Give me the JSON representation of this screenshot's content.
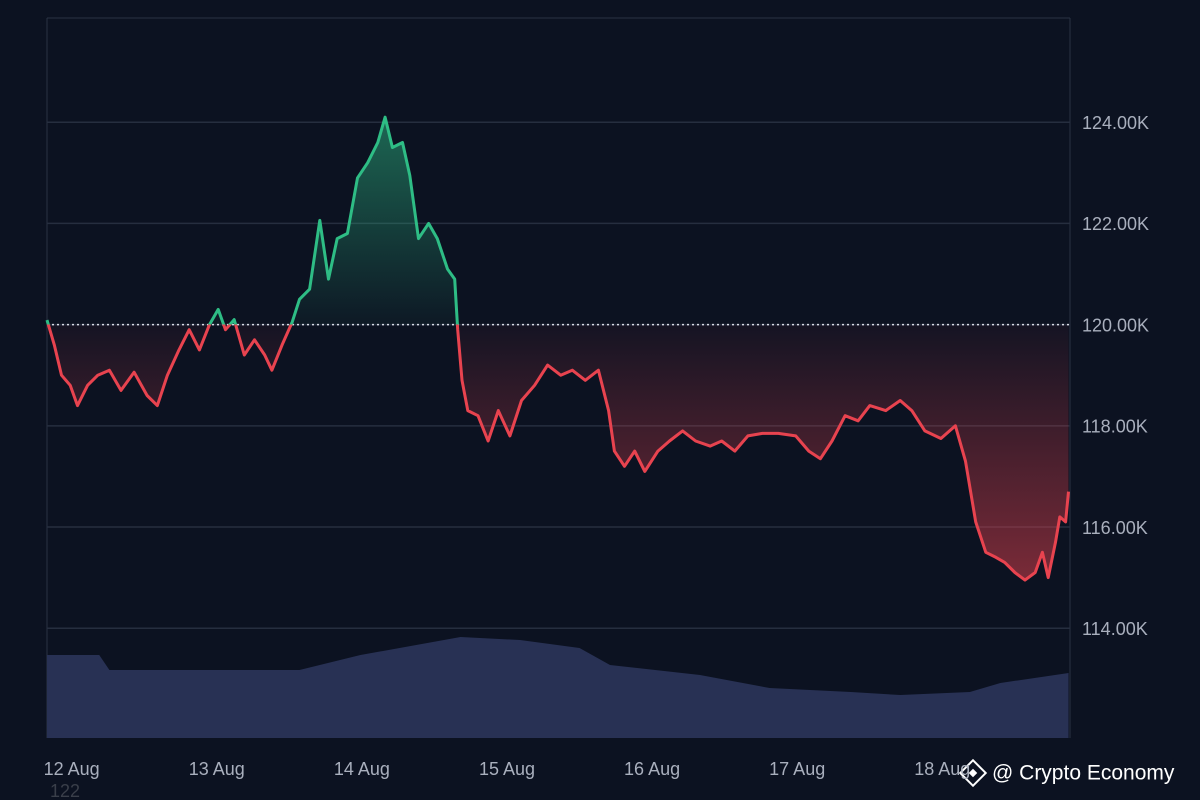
{
  "chart_data": {
    "type": "line",
    "x": [
      11.83,
      11.88,
      11.93,
      11.99,
      12.04,
      12.11,
      12.18,
      12.26,
      12.34,
      12.43,
      12.52,
      12.59,
      12.66,
      12.74,
      12.81,
      12.88,
      12.95,
      13.01,
      13.06,
      13.12,
      13.19,
      13.26,
      13.33,
      13.38,
      13.45,
      13.52,
      13.57,
      13.64,
      13.71,
      13.77,
      13.83,
      13.9,
      13.97,
      14.04,
      14.11,
      14.16,
      14.21,
      14.28,
      14.33,
      14.39,
      14.46,
      14.52,
      14.59,
      14.64,
      14.66,
      14.69,
      14.73,
      14.8,
      14.87,
      14.94,
      15.02,
      15.1,
      15.19,
      15.28,
      15.37,
      15.45,
      15.54,
      15.63,
      15.7,
      15.74,
      15.81,
      15.88,
      15.95,
      16.04,
      16.12,
      16.21,
      16.3,
      16.4,
      16.48,
      16.57,
      16.66,
      16.76,
      16.87,
      16.99,
      17.08,
      17.16,
      17.24,
      17.33,
      17.42,
      17.5,
      17.61,
      17.71,
      17.79,
      17.88,
      17.99,
      18.09,
      18.16,
      18.23,
      18.3,
      18.37,
      18.43,
      18.5,
      18.57,
      18.64,
      18.69,
      18.73,
      18.78,
      18.81,
      18.85,
      18.87
    ],
    "values": [
      120090,
      119600,
      119000,
      118800,
      118400,
      118800,
      119000,
      119100,
      118700,
      119060,
      118600,
      118400,
      119000,
      119500,
      119900,
      119500,
      120000,
      120300,
      119900,
      120100,
      119400,
      119700,
      119400,
      119100,
      119600,
      120050,
      120500,
      120700,
      122060,
      120900,
      121700,
      121800,
      122900,
      123200,
      123600,
      124100,
      123500,
      123600,
      122950,
      121700,
      122000,
      121700,
      121100,
      120900,
      119900,
      118900,
      118300,
      118200,
      117700,
      118300,
      117800,
      118500,
      118800,
      119200,
      119000,
      119100,
      118900,
      119100,
      118300,
      117500,
      117200,
      117500,
      117100,
      117500,
      117700,
      117900,
      117700,
      117600,
      117700,
      117500,
      117800,
      117850,
      117850,
      117800,
      117500,
      117350,
      117700,
      118200,
      118100,
      118400,
      118300,
      118500,
      118300,
      117900,
      117750,
      118000,
      117300,
      116100,
      115500,
      115400,
      115300,
      115100,
      114950,
      115100,
      115500,
      115000,
      115700,
      116200,
      116100,
      116700
    ],
    "baseline": 120000,
    "up_color": "#2ebd85",
    "down_color": "#e8434f",
    "volume": {
      "x": [
        11.83,
        12.19,
        12.26,
        13.57,
        13.71,
        13.99,
        14.26,
        14.68,
        15.09,
        15.5,
        15.71,
        16.33,
        16.81,
        17.37,
        17.71,
        18.19,
        18.4,
        18.87
      ],
      "values": [
        8.3,
        8.3,
        6.8,
        6.8,
        7.3,
        8.3,
        9.0,
        10.1,
        9.8,
        9.0,
        7.3,
        6.3,
        5.0,
        4.6,
        4.3,
        4.6,
        5.5,
        6.5
      ],
      "color": "#283154"
    },
    "y2lim": [
      0,
      72
    ],
    "xlim": [
      11.83,
      18.88
    ],
    "xticks": [
      {
        "value": 12,
        "label": "12 Aug"
      },
      {
        "value": 13,
        "label": "13 Aug"
      },
      {
        "value": 14,
        "label": "14 Aug"
      },
      {
        "value": 15,
        "label": "15 Aug"
      },
      {
        "value": 16,
        "label": "16 Aug"
      },
      {
        "value": 17,
        "label": "17 Aug"
      },
      {
        "value": 18,
        "label": "18 Aug"
      }
    ],
    "ylim": [
      111830,
      126060
    ],
    "yticks": [
      {
        "value": 114000,
        "label": "114.00K"
      },
      {
        "value": 116000,
        "label": "116.00K"
      },
      {
        "value": 118000,
        "label": "118.00K"
      },
      {
        "value": 120000,
        "label": "120.00K"
      },
      {
        "value": 122000,
        "label": "122.00K"
      },
      {
        "value": 124000,
        "label": "124.00K"
      }
    ],
    "grid": true,
    "annotation": "122",
    "watermark": "@ Crypto Economy"
  }
}
